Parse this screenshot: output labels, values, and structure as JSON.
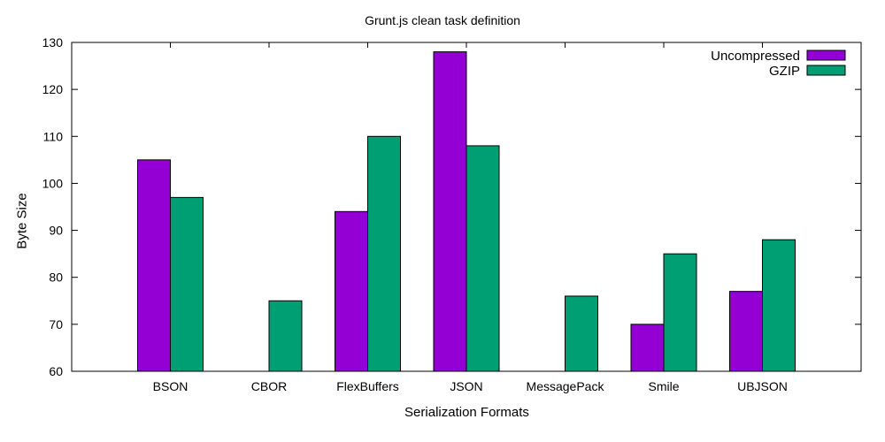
{
  "chart_data": {
    "type": "bar",
    "title": "Grunt.js clean task definition",
    "xlabel": "Serialization Formats",
    "ylabel": "Byte Size",
    "ylim": [
      60,
      130
    ],
    "yticks": [
      60,
      70,
      80,
      90,
      100,
      110,
      120,
      130
    ],
    "categories": [
      "BSON",
      "CBOR",
      "FlexBuffers",
      "JSON",
      "MessagePack",
      "Smile",
      "UBJSON"
    ],
    "series": [
      {
        "name": "Uncompressed",
        "color": "#9400d3",
        "values": [
          105,
          60,
          94,
          128,
          60,
          70,
          77
        ]
      },
      {
        "name": "GZIP",
        "color": "#009e73",
        "values": [
          97,
          75,
          110,
          108,
          76,
          85,
          88
        ]
      }
    ],
    "legend_position": "top-right",
    "grid": false
  }
}
